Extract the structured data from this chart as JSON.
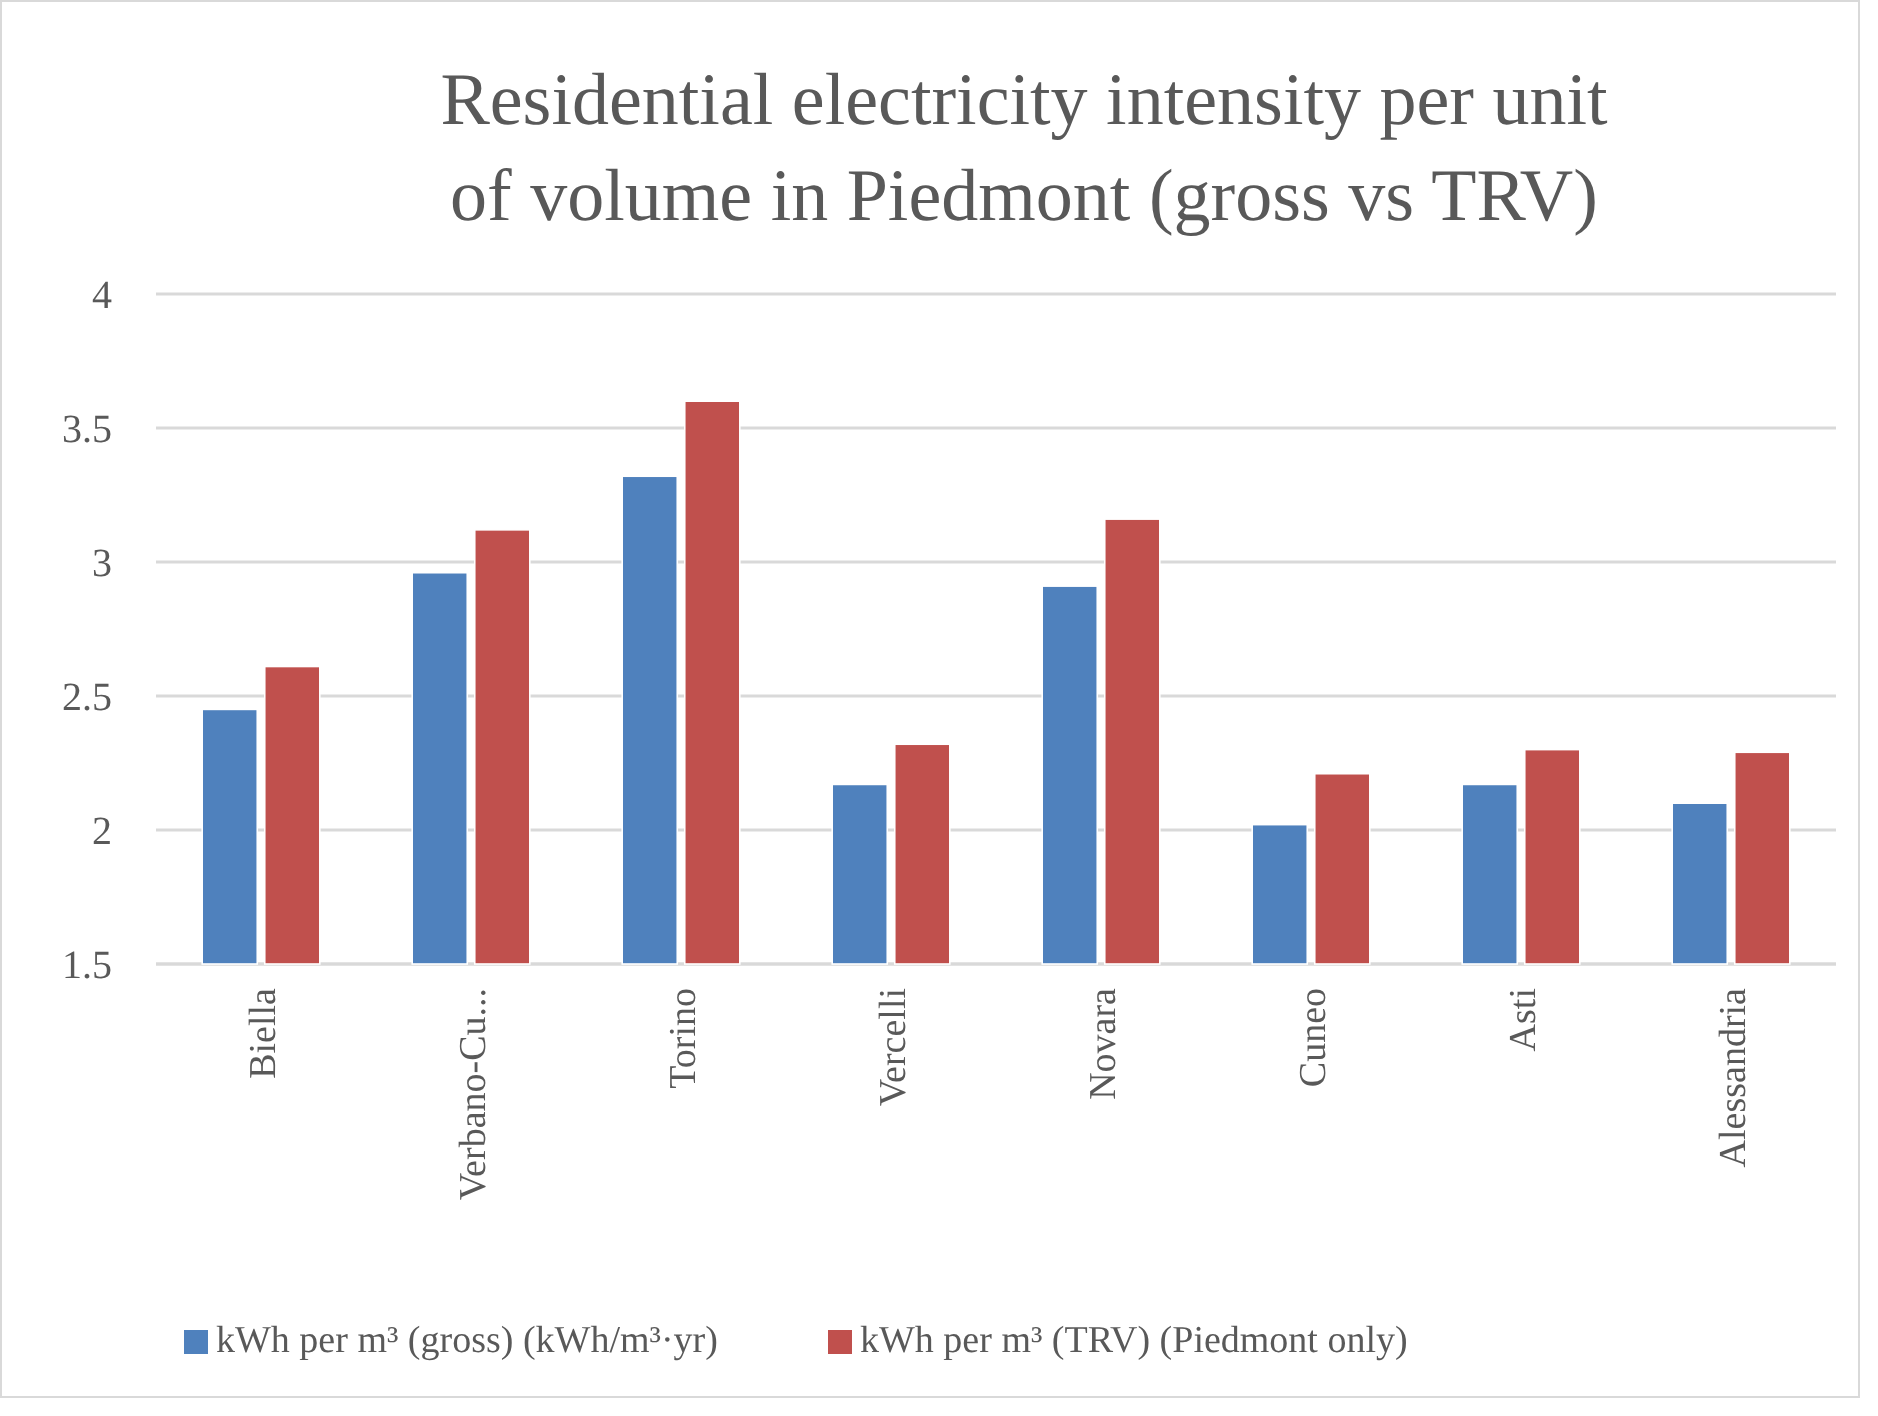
{
  "chart_data": {
    "type": "bar",
    "title": "Residential electricity intensity per unit of volume in Piedmont (gross vs TRV)",
    "categories": [
      "Biella",
      "Verbano-Cu...",
      "Torino",
      "Vercelli",
      "Novara",
      "Cuneo",
      "Asti",
      "Alessandria"
    ],
    "series": [
      {
        "name": "kWh per m³ (gross) (kWh/m³·yr)",
        "color": "#4f81bd",
        "values": [
          2.45,
          2.96,
          3.32,
          2.17,
          2.91,
          2.02,
          2.17,
          2.1
        ]
      },
      {
        "name": "kWh per m³ (TRV) (Piedmont only)",
        "color": "#c0504d",
        "values": [
          2.61,
          3.12,
          3.6,
          2.32,
          3.16,
          2.21,
          2.3,
          2.29
        ]
      }
    ],
    "ylim": [
      1.5,
      4
    ],
    "yticks": [
      1.5,
      2,
      2.5,
      3,
      3.5,
      4
    ],
    "grid": "y",
    "legend": "bottom"
  }
}
